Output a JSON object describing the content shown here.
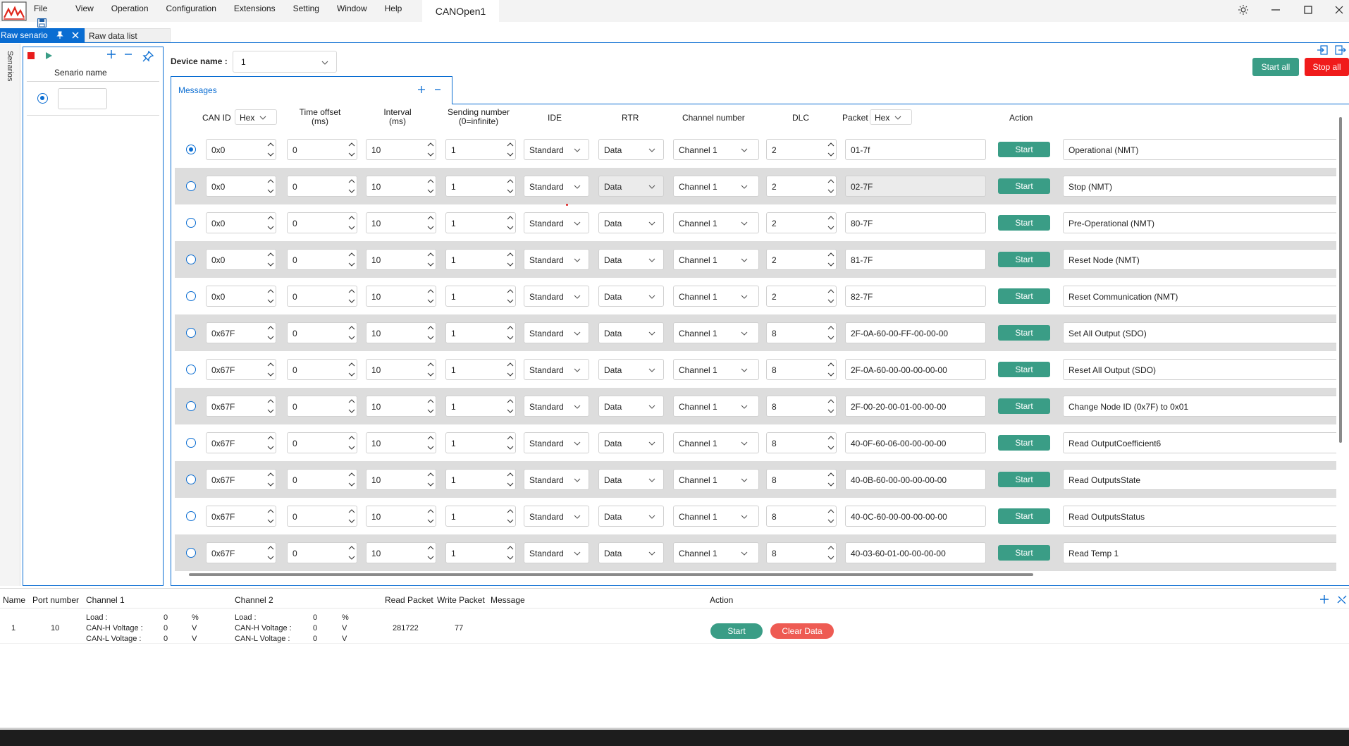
{
  "menu": {
    "items": [
      "File",
      "View",
      "Operation",
      "Configuration",
      "Extensions",
      "Setting",
      "Window",
      "Help"
    ],
    "title_tab": "CANOpen1"
  },
  "dock_tabs": {
    "raw_senario": "Raw senario",
    "raw_data_list": "Raw data list"
  },
  "scenarios": {
    "side_label": "Senarios",
    "header": "Senario name",
    "rows": [
      {
        "name": "",
        "selected": true
      }
    ]
  },
  "device": {
    "label": "Device name :",
    "value": "1"
  },
  "buttons": {
    "start_all": "Start all",
    "stop_all": "Stop all"
  },
  "messages": {
    "title": "Messages",
    "columns": {
      "can_id": "CAN ID",
      "can_id_format": "Hex",
      "time_offset": [
        "Time offset",
        "(ms)"
      ],
      "interval": [
        "Interval",
        "(ms)"
      ],
      "sending_number": [
        "Sending number",
        "(0=infinite)"
      ],
      "ide": "IDE",
      "rtr": "RTR",
      "channel_number": "Channel number",
      "dlc": "DLC",
      "packet": "Packet",
      "packet_format": "Hex",
      "action": "Action"
    },
    "start_label": "Start",
    "rows": [
      {
        "selected": true,
        "can_id": "0x0",
        "time_offset": "0",
        "interval": "10",
        "sending": "1",
        "ide": "Standard",
        "rtr": "Data",
        "rtr_disabled": false,
        "channel": "Channel 1",
        "dlc": "2",
        "packet": "01-7f",
        "packet_disabled": false,
        "description": "Operational (NMT)"
      },
      {
        "selected": false,
        "can_id": "0x0",
        "time_offset": "0",
        "interval": "10",
        "sending": "1",
        "ide": "Standard",
        "rtr": "Data",
        "rtr_disabled": true,
        "channel": "Channel 1",
        "dlc": "2",
        "packet": "02-7F",
        "packet_disabled": true,
        "description": "Stop (NMT)"
      },
      {
        "selected": false,
        "can_id": "0x0",
        "time_offset": "0",
        "interval": "10",
        "sending": "1",
        "ide": "Standard",
        "rtr": "Data",
        "rtr_disabled": false,
        "channel": "Channel 1",
        "dlc": "2",
        "packet": "80-7F",
        "packet_disabled": false,
        "description": "Pre-Operational (NMT)"
      },
      {
        "selected": false,
        "can_id": "0x0",
        "time_offset": "0",
        "interval": "10",
        "sending": "1",
        "ide": "Standard",
        "rtr": "Data",
        "rtr_disabled": false,
        "channel": "Channel 1",
        "dlc": "2",
        "packet": "81-7F",
        "packet_disabled": false,
        "description": "Reset Node (NMT)"
      },
      {
        "selected": false,
        "can_id": "0x0",
        "time_offset": "0",
        "interval": "10",
        "sending": "1",
        "ide": "Standard",
        "rtr": "Data",
        "rtr_disabled": false,
        "channel": "Channel 1",
        "dlc": "2",
        "packet": "82-7F",
        "packet_disabled": false,
        "description": "Reset Communication (NMT)"
      },
      {
        "selected": false,
        "can_id": "0x67F",
        "time_offset": "0",
        "interval": "10",
        "sending": "1",
        "ide": "Standard",
        "rtr": "Data",
        "rtr_disabled": false,
        "channel": "Channel 1",
        "dlc": "8",
        "packet": "2F-0A-60-00-FF-00-00-00",
        "packet_disabled": false,
        "description": "Set All Output (SDO)"
      },
      {
        "selected": false,
        "can_id": "0x67F",
        "time_offset": "0",
        "interval": "10",
        "sending": "1",
        "ide": "Standard",
        "rtr": "Data",
        "rtr_disabled": false,
        "channel": "Channel 1",
        "dlc": "8",
        "packet": "2F-0A-60-00-00-00-00-00",
        "packet_disabled": false,
        "description": "Reset All Output (SDO)"
      },
      {
        "selected": false,
        "can_id": "0x67F",
        "time_offset": "0",
        "interval": "10",
        "sending": "1",
        "ide": "Standard",
        "rtr": "Data",
        "rtr_disabled": false,
        "channel": "Channel 1",
        "dlc": "8",
        "packet": "2F-00-20-00-01-00-00-00",
        "packet_disabled": false,
        "description": "Change Node ID (0x7F) to 0x01"
      },
      {
        "selected": false,
        "can_id": "0x67F",
        "time_offset": "0",
        "interval": "10",
        "sending": "1",
        "ide": "Standard",
        "rtr": "Data",
        "rtr_disabled": false,
        "channel": "Channel 1",
        "dlc": "8",
        "packet": "40-0F-60-06-00-00-00-00",
        "packet_disabled": false,
        "description": "Read OutputCoefficient6"
      },
      {
        "selected": false,
        "can_id": "0x67F",
        "time_offset": "0",
        "interval": "10",
        "sending": "1",
        "ide": "Standard",
        "rtr": "Data",
        "rtr_disabled": false,
        "channel": "Channel 1",
        "dlc": "8",
        "packet": "40-0B-60-00-00-00-00-00",
        "packet_disabled": false,
        "description": "Read OutputsState"
      },
      {
        "selected": false,
        "can_id": "0x67F",
        "time_offset": "0",
        "interval": "10",
        "sending": "1",
        "ide": "Standard",
        "rtr": "Data",
        "rtr_disabled": false,
        "channel": "Channel 1",
        "dlc": "8",
        "packet": "40-0C-60-00-00-00-00-00",
        "packet_disabled": false,
        "description": "Read OutputsStatus"
      },
      {
        "selected": false,
        "can_id": "0x67F",
        "time_offset": "0",
        "interval": "10",
        "sending": "1",
        "ide": "Standard",
        "rtr": "Data",
        "rtr_disabled": false,
        "channel": "Channel 1",
        "dlc": "8",
        "packet": "40-03-60-01-00-00-00-00",
        "packet_disabled": false,
        "description": "Read Temp 1"
      }
    ]
  },
  "devices_table": {
    "headers": {
      "name": "Name",
      "port_number": "Port number",
      "channel1": "Channel 1",
      "channel2": "Channel 2",
      "read_packet": "Read Packet",
      "write_packet": "Write Packet",
      "message": "Message",
      "action": "Action"
    },
    "row": {
      "name": "1",
      "port": "10",
      "channel1": {
        "load_label": "Load :",
        "load": "0",
        "load_unit": "%",
        "canh_label": "CAN-H Voltage :",
        "canh": "0",
        "canh_unit": "V",
        "canl_label": "CAN-L Voltage :",
        "canl": "0",
        "canl_unit": "V"
      },
      "channel2": {
        "load_label": "Load :",
        "load": "0",
        "load_unit": "%",
        "canh_label": "CAN-H Voltage :",
        "canh": "0",
        "canh_unit": "V",
        "canl_label": "CAN-L Voltage :",
        "canl": "0",
        "canl_unit": "V"
      },
      "read_packet": "281722",
      "write_packet": "77",
      "message": "",
      "start_label": "Start",
      "clear_label": "Clear Data"
    }
  },
  "colors": {
    "accent": "#0a6dd2",
    "start_green": "#3a9d86",
    "stop_red": "#f01b1b",
    "clear_red": "#ee5b53",
    "alt_row": "#dddddd"
  }
}
